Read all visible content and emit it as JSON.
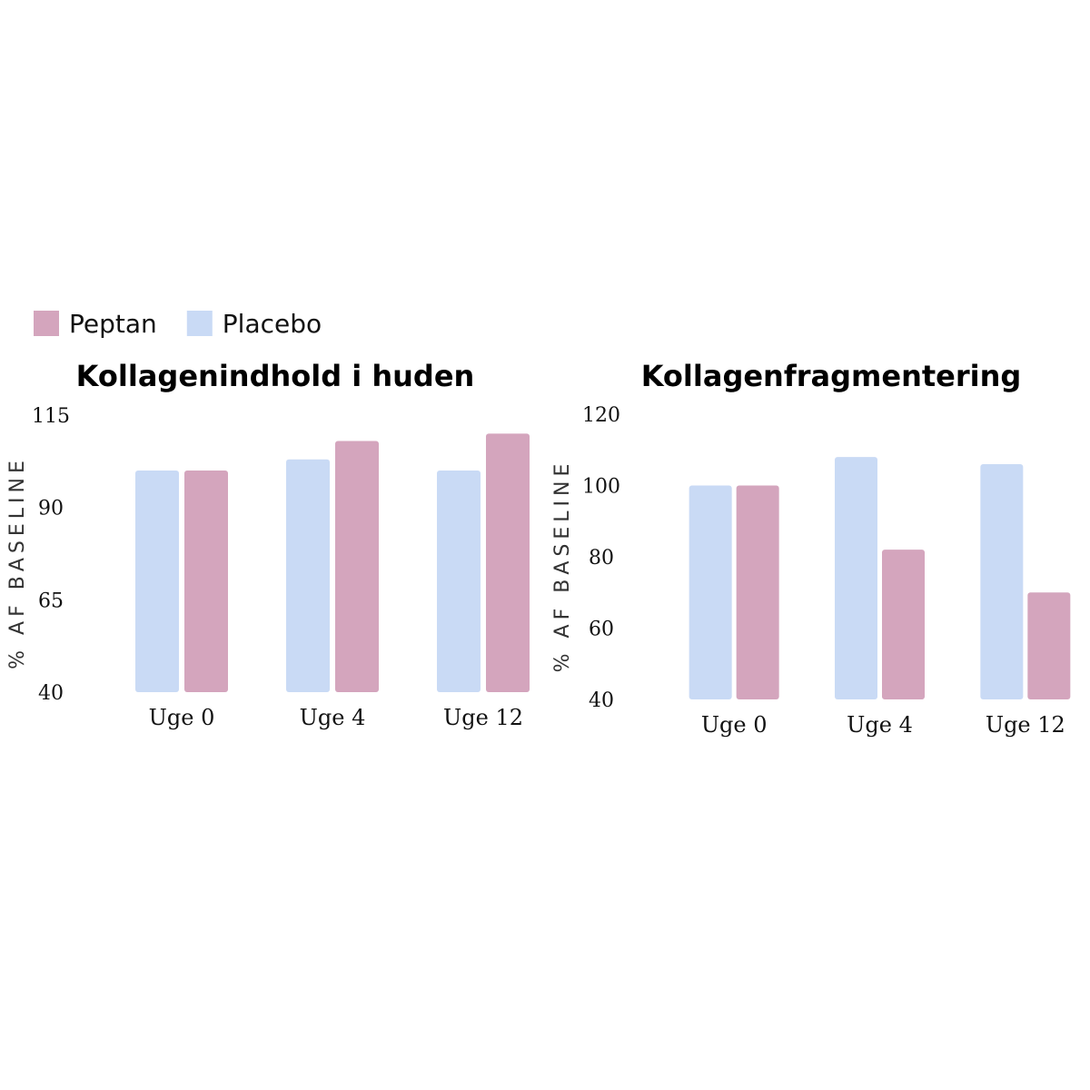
{
  "chart_data": [
    {
      "type": "bar",
      "title": "Kollagenindhold i huden",
      "y_label": "% AF BASELINE",
      "categories": [
        "Uge 0",
        "Uge 4",
        "Uge 12"
      ],
      "series": [
        {
          "name": "Placebo",
          "color": "#c9daf5",
          "values": [
            100,
            103,
            100
          ]
        },
        {
          "name": "Peptan",
          "color": "#d4a5bd",
          "values": [
            100,
            108,
            110
          ]
        }
      ],
      "ylim": [
        40,
        115
      ],
      "yticks": [
        40,
        65,
        90,
        115
      ]
    },
    {
      "type": "bar",
      "title": "Kollagenfragmentering",
      "y_label": "% AF BASELINE",
      "categories": [
        "Uge 0",
        "Uge 4",
        "Uge 12"
      ],
      "series": [
        {
          "name": "Placebo",
          "color": "#c9daf5",
          "values": [
            100,
            108,
            106
          ]
        },
        {
          "name": "Peptan",
          "color": "#d4a5bd",
          "values": [
            100,
            82,
            70
          ]
        }
      ],
      "ylim": [
        40,
        120
      ],
      "yticks": [
        40,
        60,
        80,
        100,
        120
      ]
    }
  ]
}
